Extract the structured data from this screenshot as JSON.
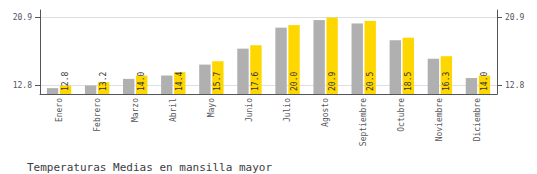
{
  "chart_data": {
    "type": "bar",
    "title": "Temperaturas Medias en mansilla mayor",
    "categories": [
      "Enero",
      "Febrero",
      "Marzo",
      "Abril",
      "Mayo",
      "Junio",
      "Julio",
      "Agosto",
      "Septiembre",
      "Octubre",
      "Noviembre",
      "Diciembre"
    ],
    "series": [
      {
        "color": "#B0B0B0",
        "values": [
          12.5,
          12.8,
          13.6,
          14.0,
          15.3,
          17.2,
          19.7,
          20.6,
          20.2,
          18.2,
          16.0,
          13.7
        ]
      },
      {
        "color": "#FFD700",
        "values": [
          12.8,
          13.2,
          14.0,
          14.4,
          15.7,
          17.6,
          20.0,
          20.9,
          20.5,
          18.5,
          16.3,
          14.0
        ],
        "value_labels": [
          "12.8",
          "13.2",
          "14.0",
          "14.4",
          "15.7",
          "17.6",
          "20.0",
          "20.9",
          "20.5",
          "18.5",
          "16.3",
          "14.0"
        ],
        "data_labels": true
      }
    ],
    "ylim": [
      11.8,
      21.8
    ],
    "yticks": [
      12.8,
      20.9
    ],
    "y2lim": [
      11.8,
      21.8
    ],
    "y2ticks": [
      12.8,
      20.9
    ],
    "grid": true
  }
}
